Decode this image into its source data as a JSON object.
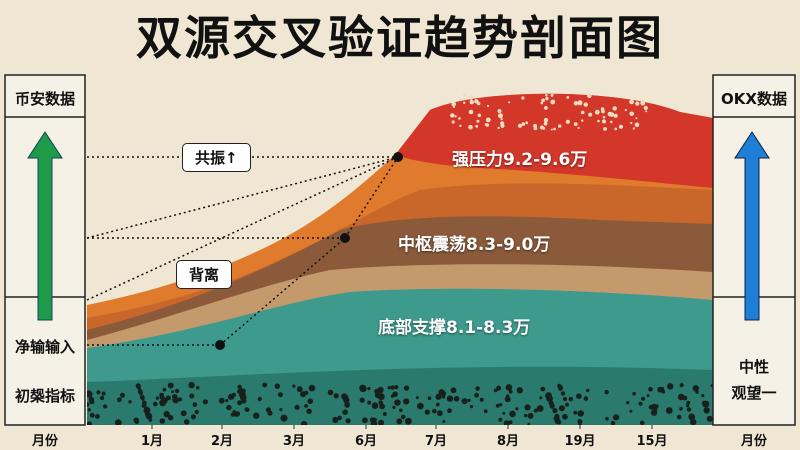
{
  "title": "双源交叉验证趋势剖面图",
  "left_panel": {
    "header": "币安数据",
    "labels": [
      "净输输入",
      "初椝指标"
    ]
  },
  "right_panel": {
    "header": "OKX数据",
    "labels": [
      "中性",
      "观望一"
    ]
  },
  "annotations": [
    "共振↑",
    "背离"
  ],
  "layers": [
    "强压力9.2-9.6万",
    "中枢震荡8.3-9.0万",
    "底部支撑8.1-8.3万"
  ],
  "x_axis": {
    "left_label": "月份",
    "ticks": [
      "1月",
      "2月",
      "3月",
      "6月",
      "7月",
      "8月",
      "19月",
      "15月"
    ],
    "right_label": "月份"
  }
}
